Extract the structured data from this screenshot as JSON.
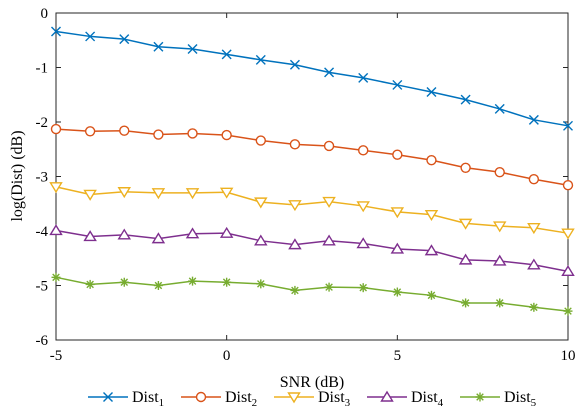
{
  "chart_data": {
    "type": "line",
    "xlabel": "SNR (dB)",
    "ylabel": "log(Dist) (dB)",
    "xlim": [
      -5,
      10
    ],
    "ylim": [
      -6,
      0
    ],
    "xticks": [
      -5,
      0,
      5,
      10
    ],
    "xtick_labels": [
      "-5",
      "0",
      "5",
      "10"
    ],
    "yticks": [
      0,
      -1,
      -2,
      -3,
      -4,
      -5,
      -6
    ],
    "ytick_labels": [
      "0",
      "-1",
      "-2",
      "-3",
      "-4",
      "-5",
      "-6"
    ],
    "grid": false,
    "legend_position": "bottom",
    "x": [
      -5,
      -4,
      -3,
      -2,
      -1,
      0,
      1,
      2,
      3,
      4,
      5,
      6,
      7,
      8,
      9,
      10
    ],
    "series": [
      {
        "name": "Dist",
        "subscript": "1",
        "color": "#0072BD",
        "marker": "x",
        "values": [
          -0.34,
          -0.43,
          -0.48,
          -0.62,
          -0.66,
          -0.76,
          -0.86,
          -0.95,
          -1.09,
          -1.19,
          -1.32,
          -1.45,
          -1.59,
          -1.76,
          -1.96,
          -2.07
        ]
      },
      {
        "name": "Dist",
        "subscript": "2",
        "color": "#D95319",
        "marker": "o",
        "values": [
          -2.13,
          -2.17,
          -2.16,
          -2.23,
          -2.21,
          -2.24,
          -2.34,
          -2.41,
          -2.44,
          -2.52,
          -2.6,
          -2.7,
          -2.84,
          -2.92,
          -3.05,
          -3.16
        ]
      },
      {
        "name": "Dist",
        "subscript": "3",
        "color": "#EDB120",
        "marker": "triangle-down",
        "values": [
          -3.19,
          -3.33,
          -3.28,
          -3.3,
          -3.3,
          -3.29,
          -3.47,
          -3.52,
          -3.46,
          -3.54,
          -3.65,
          -3.7,
          -3.86,
          -3.91,
          -3.94,
          -4.04
        ]
      },
      {
        "name": "Dist",
        "subscript": "4",
        "color": "#7E2F8E",
        "marker": "triangle-up",
        "values": [
          -3.99,
          -4.1,
          -4.07,
          -4.14,
          -4.05,
          -4.04,
          -4.18,
          -4.25,
          -4.18,
          -4.23,
          -4.33,
          -4.36,
          -4.53,
          -4.55,
          -4.62,
          -4.74
        ]
      },
      {
        "name": "Dist",
        "subscript": "5",
        "color": "#77AC30",
        "marker": "asterisk",
        "values": [
          -4.85,
          -4.98,
          -4.94,
          -5.0,
          -4.92,
          -4.94,
          -4.97,
          -5.09,
          -5.03,
          -5.04,
          -5.12,
          -5.18,
          -5.32,
          -5.32,
          -5.4,
          -5.47
        ]
      }
    ]
  }
}
